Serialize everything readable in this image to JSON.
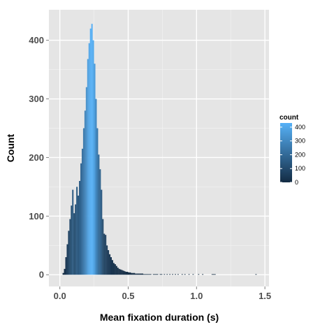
{
  "chart_data": {
    "type": "bar",
    "subtype": "histogram",
    "xlabel": "Mean fixation duration (s)",
    "ylabel": "Count",
    "xlim": [
      -0.08,
      1.53
    ],
    "ylim": [
      -20,
      452
    ],
    "x_ticks": [
      0.0,
      0.5,
      1.0,
      1.5
    ],
    "x_tick_labels": [
      "0.0",
      "0.5",
      "1.0",
      "1.5"
    ],
    "y_ticks": [
      0,
      100,
      200,
      300,
      400
    ],
    "y_tick_labels": [
      "0",
      "100",
      "200",
      "300",
      "400"
    ],
    "grid": true,
    "legend": {
      "title": "count",
      "position": "right",
      "type": "colorbar",
      "range": [
        0,
        430
      ],
      "ticks": [
        0,
        100,
        200,
        300,
        400
      ],
      "tick_labels": [
        "0",
        "100",
        "200",
        "300",
        "400"
      ],
      "low_color": "#132B43",
      "high_color": "#56B1F7"
    },
    "colors": {
      "panel": "#e5e5e5",
      "grid_major": "#ffffff",
      "grid_minor": "#f2f2f2"
    },
    "bins": {
      "start": 0.0,
      "width": 0.01,
      "counts": [
        0,
        0,
        3,
        10,
        30,
        52,
        75,
        95,
        118,
        145,
        105,
        120,
        150,
        135,
        160,
        190,
        215,
        250,
        280,
        320,
        368,
        395,
        420,
        428,
        400,
        360,
        300,
        250,
        205,
        180,
        145,
        95,
        70,
        68,
        50,
        42,
        35,
        30,
        25,
        20,
        18,
        15,
        12,
        10,
        9,
        8,
        7,
        6,
        5,
        5,
        4,
        4,
        3,
        3,
        3,
        2,
        2,
        2,
        2,
        2,
        2,
        1,
        1,
        1,
        1,
        1,
        1,
        0,
        1,
        1,
        1,
        1,
        0,
        1,
        1,
        0,
        1,
        0,
        1,
        0,
        1,
        0,
        1,
        0,
        1,
        0,
        1,
        0,
        0,
        1,
        0,
        1,
        0,
        0,
        1,
        0,
        0,
        1,
        0,
        0,
        0,
        1,
        0,
        0,
        1,
        0,
        0,
        0,
        0,
        0,
        0,
        1,
        1,
        1,
        0,
        0,
        0,
        0,
        0,
        0,
        0,
        0,
        0,
        0,
        0,
        0,
        0,
        0,
        0,
        0,
        0,
        0,
        0,
        0,
        0,
        0,
        0,
        0,
        0,
        0,
        0,
        0,
        0,
        1
      ]
    }
  }
}
